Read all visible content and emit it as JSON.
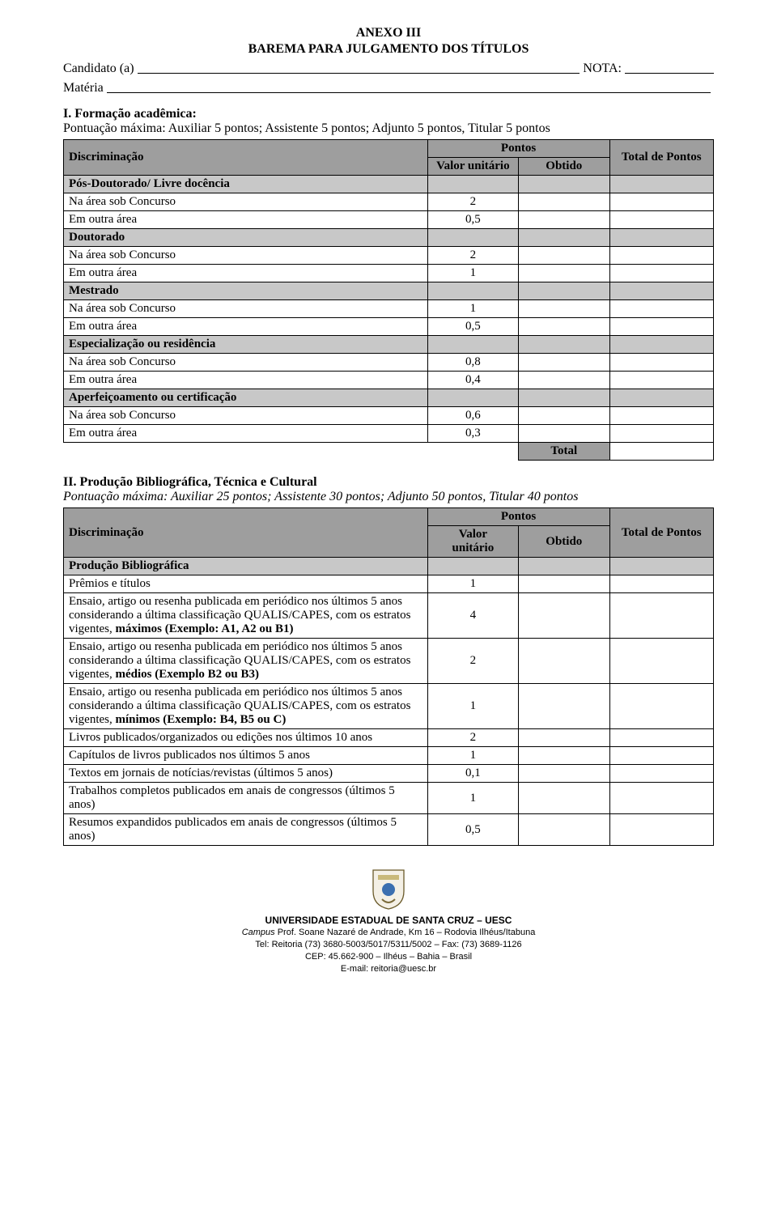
{
  "header": {
    "title1": "ANEXO III",
    "title2": "BAREMA PARA JULGAMENTO DOS TÍTULOS",
    "candidate_label": "Candidato (a)",
    "nota_label": "NOTA:",
    "materia_label": "Matéria"
  },
  "section1": {
    "title_bold": "I. Formação acadêmica:",
    "subtitle": "Pontuação máxima: Auxiliar 5 pontos; Assistente 5 pontos; Adjunto 5 pontos, Titular 5 pontos",
    "cols": {
      "discriminacao": "Discriminação",
      "pontos": "Pontos",
      "valor_unitario": "Valor unitário",
      "obtido": "Obtido",
      "total_de_pontos": "Total de Pontos"
    },
    "groups": [
      {
        "label": "Pós-Doutorado/ Livre docência",
        "rows": [
          {
            "label": "Na área sob Concurso",
            "valor": "2"
          },
          {
            "label": "Em outra área",
            "valor": "0,5"
          }
        ]
      },
      {
        "label": "Doutorado",
        "rows": [
          {
            "label": "Na área sob Concurso",
            "valor": "2"
          },
          {
            "label": "Em outra área",
            "valor": "1"
          }
        ]
      },
      {
        "label": "Mestrado",
        "rows": [
          {
            "label": "Na área sob Concurso",
            "valor": "1"
          },
          {
            "label": "Em outra área",
            "valor": "0,5"
          }
        ]
      },
      {
        "label": "Especialização ou residência",
        "rows": [
          {
            "label": "Na área sob Concurso",
            "valor": "0,8"
          },
          {
            "label": "Em outra área",
            "valor": "0,4"
          }
        ]
      },
      {
        "label": "Aperfeiçoamento ou certificação",
        "rows": [
          {
            "label": "Na área sob Concurso",
            "valor": "0,6"
          },
          {
            "label": "Em outra área",
            "valor": "0,3"
          }
        ]
      }
    ],
    "total_label": "Total"
  },
  "section2": {
    "title_bold": "II. Produção Bibliográfica, Técnica e Cultural",
    "subtitle_italic": "Pontuação máxima: Auxiliar 25 pontos; Assistente 30 pontos; Adjunto 50 pontos, Titular 40 pontos",
    "cols": {
      "discriminacao": "Discriminação",
      "pontos": "Pontos",
      "valor": "Valor",
      "unitario": "unitário",
      "obtido": "Obtido",
      "total_de_pontos": "Total de Pontos"
    },
    "group_label": "Produção Bibliográfica",
    "rows": [
      {
        "label": "Prêmios e títulos",
        "valor": "1"
      },
      {
        "label": "Ensaio, artigo ou resenha publicada em periódico nos últimos 5 anos considerando a última classificação QUALIS/CAPES, com os estratos vigentes, máximos (Exemplo: A1, A2 ou B1)",
        "valor": "4",
        "bold_tail": "máximos (Exemplo: A1, A2 ou B1)"
      },
      {
        "label": "Ensaio, artigo ou resenha publicada em periódico nos últimos 5 anos considerando a última classificação QUALIS/CAPES, com os estratos vigentes, médios (Exemplo B2 ou B3)",
        "valor": "2",
        "bold_tail": "médios (Exemplo B2 ou B3)"
      },
      {
        "label": "Ensaio, artigo ou resenha publicada em periódico nos últimos 5 anos considerando a última classificação QUALIS/CAPES, com os estratos vigentes, mínimos (Exemplo: B4, B5 ou C)",
        "valor": "1",
        "bold_tail": "mínimos (Exemplo: B4, B5 ou C)"
      },
      {
        "label": "Livros publicados/organizados ou edições nos últimos 10 anos",
        "valor": "2"
      },
      {
        "label": "Capítulos de livros publicados nos últimos 5 anos",
        "valor": "1"
      },
      {
        "label": "Textos em jornais de notícias/revistas (últimos 5 anos)",
        "valor": "0,1"
      },
      {
        "label": "Trabalhos completos publicados em anais de congressos (últimos 5 anos)",
        "valor": "1"
      },
      {
        "label": "Resumos expandidos publicados em anais de congressos (últimos 5 anos)",
        "valor": "0,5"
      }
    ]
  },
  "footer": {
    "institution": "UNIVERSIDADE ESTADUAL DE SANTA CRUZ – UESC",
    "campus_label": "Campus",
    "campus_rest": " Prof. Soane Nazaré de Andrade, Km 16 – Rodovia Ilhéus/Itabuna",
    "tel": "Tel: Reitoria (73) 3680-5003/5017/5311/5002 – Fax: (73) 3689-1126",
    "cep": "CEP: 45.662-900 – Ilhéus – Bahia – Brasil",
    "email": "E-mail: reitoria@uesc.br"
  },
  "colors": {
    "header_bg": "#9e9e9e",
    "subheader_bg": "#c8c8c8",
    "border": "#000000",
    "text": "#000000",
    "page_bg": "#ffffff"
  }
}
